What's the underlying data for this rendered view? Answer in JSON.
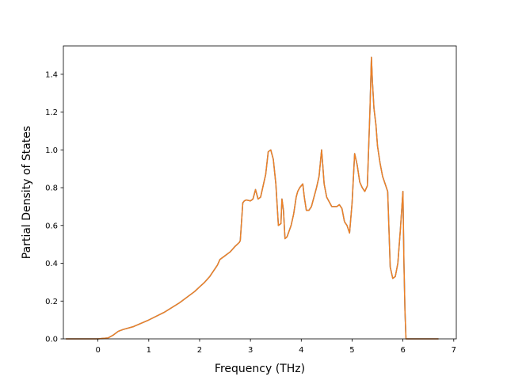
{
  "chart_data": {
    "type": "line",
    "title": "",
    "xlabel": "Frequency (THz)",
    "ylabel": "Partial Density of States",
    "xlim": [
      -0.68,
      7.05
    ],
    "ylim": [
      0.0,
      1.55
    ],
    "xticks": [
      0,
      1,
      2,
      3,
      4,
      5,
      6,
      7
    ],
    "yticks": [
      0.0,
      0.2,
      0.4,
      0.6,
      0.8,
      1.0,
      1.2,
      1.4
    ],
    "ytick_labels": [
      "0.0",
      "0.2",
      "0.4",
      "0.6",
      "0.8",
      "1.0",
      "1.2",
      "1.4"
    ],
    "grid": false,
    "legend": null,
    "series": [
      {
        "color": "#2f6fb1",
        "x": [
          -0.63,
          0.0,
          0.2,
          0.3,
          0.4,
          0.5,
          0.7,
          1.0,
          1.3,
          1.6,
          1.9,
          2.1,
          2.2,
          2.3,
          2.35,
          2.4,
          2.5,
          2.6,
          2.7,
          2.78,
          2.8,
          2.85,
          2.88,
          2.92,
          3.0,
          3.05,
          3.1,
          3.15,
          3.2,
          3.3,
          3.35,
          3.4,
          3.45,
          3.5,
          3.55,
          3.6,
          3.62,
          3.65,
          3.68,
          3.72,
          3.8,
          3.85,
          3.9,
          3.93,
          3.97,
          4.0,
          4.03,
          4.06,
          4.1,
          4.15,
          4.2,
          4.3,
          4.35,
          4.4,
          4.42,
          4.45,
          4.5,
          4.6,
          4.7,
          4.75,
          4.8,
          4.85,
          4.9,
          4.95,
          5.0,
          5.05,
          5.1,
          5.15,
          5.2,
          5.25,
          5.3,
          5.35,
          5.38,
          5.4,
          5.43,
          5.47,
          5.5,
          5.55,
          5.6,
          5.65,
          5.7,
          5.75,
          5.8,
          5.85,
          5.9,
          5.95,
          6.0,
          6.02,
          6.04,
          6.06,
          6.7
        ],
        "y": [
          0.0,
          0.0,
          0.005,
          0.02,
          0.04,
          0.05,
          0.065,
          0.1,
          0.14,
          0.19,
          0.25,
          0.3,
          0.33,
          0.37,
          0.39,
          0.42,
          0.44,
          0.46,
          0.49,
          0.51,
          0.52,
          0.72,
          0.73,
          0.735,
          0.73,
          0.74,
          0.79,
          0.74,
          0.75,
          0.87,
          0.99,
          1.0,
          0.95,
          0.82,
          0.6,
          0.61,
          0.74,
          0.68,
          0.53,
          0.54,
          0.6,
          0.66,
          0.75,
          0.78,
          0.8,
          0.81,
          0.82,
          0.75,
          0.68,
          0.68,
          0.7,
          0.8,
          0.86,
          1.0,
          0.93,
          0.82,
          0.75,
          0.7,
          0.7,
          0.71,
          0.69,
          0.62,
          0.6,
          0.56,
          0.72,
          0.98,
          0.92,
          0.83,
          0.8,
          0.78,
          0.81,
          1.2,
          1.49,
          1.36,
          1.22,
          1.13,
          1.02,
          0.93,
          0.86,
          0.82,
          0.78,
          0.38,
          0.32,
          0.33,
          0.4,
          0.58,
          0.78,
          0.4,
          0.15,
          0.0,
          0.0
        ]
      },
      {
        "color": "#ee8126",
        "x": [
          -0.63,
          0.0,
          0.2,
          0.3,
          0.4,
          0.5,
          0.7,
          1.0,
          1.3,
          1.6,
          1.9,
          2.1,
          2.2,
          2.3,
          2.35,
          2.4,
          2.5,
          2.6,
          2.7,
          2.78,
          2.8,
          2.85,
          2.88,
          2.92,
          3.0,
          3.05,
          3.1,
          3.15,
          3.2,
          3.3,
          3.35,
          3.4,
          3.45,
          3.5,
          3.55,
          3.6,
          3.62,
          3.65,
          3.68,
          3.72,
          3.8,
          3.85,
          3.9,
          3.93,
          3.97,
          4.0,
          4.03,
          4.06,
          4.1,
          4.15,
          4.2,
          4.3,
          4.35,
          4.4,
          4.42,
          4.45,
          4.5,
          4.6,
          4.7,
          4.75,
          4.8,
          4.85,
          4.9,
          4.95,
          5.0,
          5.05,
          5.1,
          5.15,
          5.2,
          5.25,
          5.3,
          5.35,
          5.38,
          5.4,
          5.43,
          5.47,
          5.5,
          5.55,
          5.6,
          5.65,
          5.7,
          5.75,
          5.8,
          5.85,
          5.9,
          5.95,
          6.0,
          6.02,
          6.04,
          6.06,
          6.7
        ],
        "y": [
          0.0,
          0.0,
          0.005,
          0.02,
          0.04,
          0.05,
          0.065,
          0.1,
          0.14,
          0.19,
          0.25,
          0.3,
          0.33,
          0.37,
          0.39,
          0.42,
          0.44,
          0.46,
          0.49,
          0.51,
          0.52,
          0.72,
          0.73,
          0.735,
          0.73,
          0.74,
          0.79,
          0.74,
          0.75,
          0.87,
          0.99,
          1.0,
          0.95,
          0.82,
          0.6,
          0.61,
          0.74,
          0.68,
          0.53,
          0.54,
          0.6,
          0.66,
          0.75,
          0.78,
          0.8,
          0.81,
          0.82,
          0.75,
          0.68,
          0.68,
          0.7,
          0.8,
          0.86,
          1.0,
          0.93,
          0.82,
          0.75,
          0.7,
          0.7,
          0.71,
          0.69,
          0.62,
          0.6,
          0.56,
          0.72,
          0.98,
          0.92,
          0.83,
          0.8,
          0.78,
          0.81,
          1.2,
          1.49,
          1.36,
          1.22,
          1.13,
          1.02,
          0.93,
          0.86,
          0.82,
          0.78,
          0.38,
          0.32,
          0.33,
          0.4,
          0.58,
          0.78,
          0.4,
          0.15,
          0.0,
          0.0
        ]
      }
    ]
  }
}
